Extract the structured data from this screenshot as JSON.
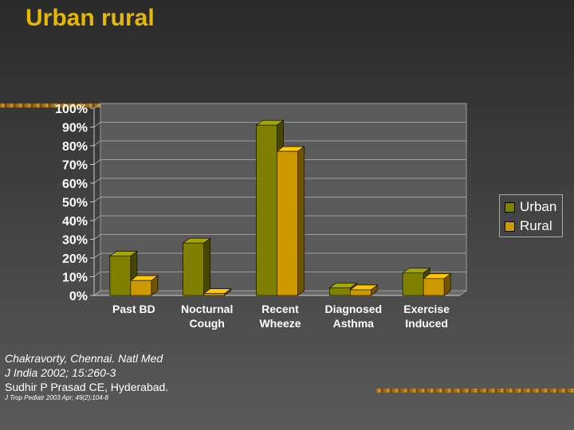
{
  "slide": {
    "title": "Urban rural"
  },
  "chart_data": {
    "type": "bar",
    "categories": [
      [
        "Past BD"
      ],
      [
        "Nocturnal",
        "Cough"
      ],
      [
        "Recent",
        "Wheeze"
      ],
      [
        "Diagnosed",
        "Asthma"
      ],
      [
        "Exercise",
        "Induced"
      ]
    ],
    "series": [
      {
        "name": "Urban",
        "color": "#808000",
        "values": [
          21,
          28,
          91,
          4,
          12
        ]
      },
      {
        "name": "Rural",
        "color": "#cc9900",
        "values": [
          8,
          1,
          77,
          3,
          9
        ]
      }
    ],
    "ylim": [
      0,
      100
    ],
    "yticks": [
      "0%",
      "10%",
      "20%",
      "30%",
      "40%",
      "50%",
      "60%",
      "70%",
      "80%",
      "90%",
      "100%"
    ],
    "grid": true,
    "legend_position": "right"
  },
  "citations": {
    "line1": "Chakravorty, Chennai. Natl Med",
    "line2": "J India 2002; 15:260-3",
    "line3": "Sudhir P Prasad CE, Hyderabad.",
    "line4": "J Trop Pediatr 2003 Apr; 49(2):104-8"
  }
}
